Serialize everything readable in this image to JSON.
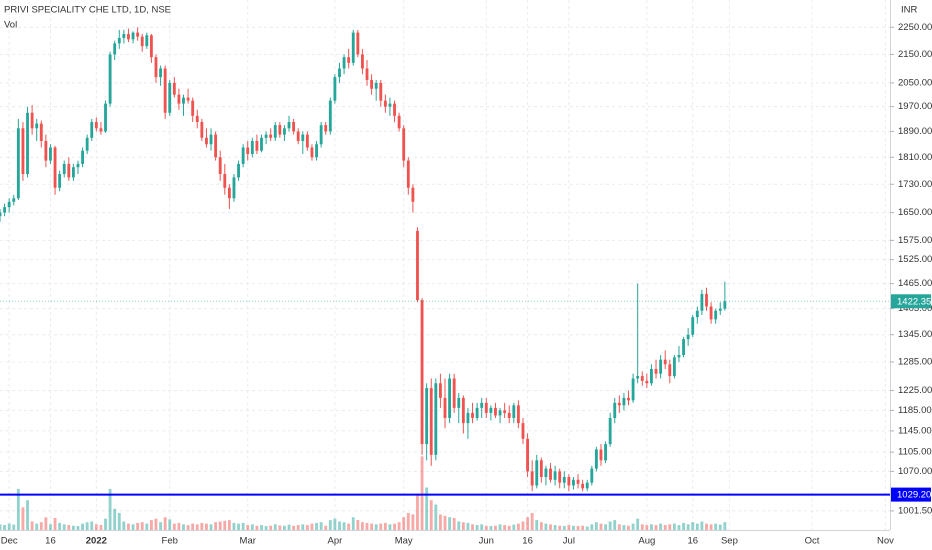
{
  "chart_data": {
    "type": "candlestick",
    "title": "PRIVI SPECIALITY CHE LTD, 1D, NSE",
    "volume_label": "Vol",
    "currency": "INR",
    "log_scale": true,
    "grid": true,
    "up_color": "#26a69a",
    "down_color": "#ef5350",
    "hline_color": "#0000ff",
    "ylim": [
      970,
      2355
    ],
    "yticks": [
      {
        "value": 2250,
        "label": "2250.00"
      },
      {
        "value": 2150,
        "label": "2150.00"
      },
      {
        "value": 2050,
        "label": "2050.00"
      },
      {
        "value": 1970,
        "label": "1970.00"
      },
      {
        "value": 1890,
        "label": "1890.00"
      },
      {
        "value": 1810,
        "label": "1810.00"
      },
      {
        "value": 1730,
        "label": "1730.00"
      },
      {
        "value": 1650,
        "label": "1650.00"
      },
      {
        "value": 1575,
        "label": "1575.00"
      },
      {
        "value": 1525,
        "label": "1525.00"
      },
      {
        "value": 1465,
        "label": "1465.00"
      },
      {
        "value": 1405,
        "label": "1405.00"
      },
      {
        "value": 1345,
        "label": "1345.00"
      },
      {
        "value": 1285,
        "label": "1285.00"
      },
      {
        "value": 1225,
        "label": "1225.00"
      },
      {
        "value": 1185,
        "label": "1185.00"
      },
      {
        "value": 1145,
        "label": "1145.00"
      },
      {
        "value": 1105,
        "label": "1105.00"
      },
      {
        "value": 1070,
        "label": "1070.00"
      },
      {
        "value": 1001.5,
        "label": "1001.50"
      }
    ],
    "xlim": [
      0,
      194
    ],
    "xticks": [
      {
        "value": 2,
        "label": "Dec"
      },
      {
        "value": 11,
        "label": "16"
      },
      {
        "value": 21,
        "label": "2022"
      },
      {
        "value": 37,
        "label": "Feb"
      },
      {
        "value": 54,
        "label": "Mar"
      },
      {
        "value": 73,
        "label": "Apr"
      },
      {
        "value": 88,
        "label": "May"
      },
      {
        "value": 106,
        "label": "Jun"
      },
      {
        "value": 115,
        "label": "16"
      },
      {
        "value": 124,
        "label": "Jul"
      },
      {
        "value": 141,
        "label": "Aug"
      },
      {
        "value": 151,
        "label": "16"
      },
      {
        "value": 159,
        "label": "Sep"
      },
      {
        "value": 177,
        "label": "Oct"
      },
      {
        "value": 193,
        "label": "Nov"
      }
    ],
    "last_price": 1422.35,
    "hline": {
      "value": 1029.2,
      "label": "1029.20"
    },
    "vlim": [
      0,
      600
    ],
    "ohlc": [
      [
        1640,
        1660,
        1625,
        1650
      ],
      [
        1650,
        1675,
        1640,
        1665
      ],
      [
        1665,
        1690,
        1650,
        1680
      ],
      [
        1680,
        1700,
        1670,
        1690
      ],
      [
        1690,
        1930,
        1685,
        1900
      ],
      [
        1900,
        1920,
        1740,
        1760
      ],
      [
        1760,
        1970,
        1750,
        1950
      ],
      [
        1950,
        1975,
        1880,
        1900
      ],
      [
        1900,
        1930,
        1860,
        1915
      ],
      [
        1915,
        1925,
        1840,
        1860
      ],
      [
        1860,
        1880,
        1780,
        1800
      ],
      [
        1800,
        1850,
        1790,
        1840
      ],
      [
        1840,
        1845,
        1700,
        1720
      ],
      [
        1720,
        1770,
        1710,
        1760
      ],
      [
        1760,
        1800,
        1750,
        1790
      ],
      [
        1790,
        1810,
        1740,
        1750
      ],
      [
        1750,
        1790,
        1740,
        1780
      ],
      [
        1780,
        1800,
        1760,
        1790
      ],
      [
        1790,
        1840,
        1780,
        1830
      ],
      [
        1830,
        1880,
        1820,
        1870
      ],
      [
        1870,
        1930,
        1860,
        1920
      ],
      [
        1920,
        1935,
        1890,
        1900
      ],
      [
        1900,
        1920,
        1880,
        1890
      ],
      [
        1890,
        1990,
        1885,
        1980
      ],
      [
        1980,
        2160,
        1970,
        2150
      ],
      [
        2150,
        2200,
        2130,
        2190
      ],
      [
        2190,
        2240,
        2170,
        2210
      ],
      [
        2210,
        2240,
        2190,
        2225
      ],
      [
        2225,
        2245,
        2195,
        2205
      ],
      [
        2205,
        2235,
        2190,
        2230
      ],
      [
        2230,
        2250,
        2200,
        2215
      ],
      [
        2215,
        2225,
        2160,
        2180
      ],
      [
        2180,
        2230,
        2170,
        2220
      ],
      [
        2220,
        2225,
        2120,
        2140
      ],
      [
        2140,
        2150,
        2050,
        2070
      ],
      [
        2070,
        2110,
        2040,
        2100
      ],
      [
        2100,
        2110,
        1930,
        1950
      ],
      [
        1950,
        2060,
        1940,
        2050
      ],
      [
        2050,
        2070,
        2000,
        2010
      ],
      [
        2010,
        2030,
        1960,
        1980
      ],
      [
        1980,
        2010,
        1940,
        2000
      ],
      [
        2000,
        2030,
        1980,
        1990
      ],
      [
        1990,
        2000,
        1920,
        1940
      ],
      [
        1940,
        1960,
        1900,
        1920
      ],
      [
        1920,
        1930,
        1860,
        1870
      ],
      [
        1870,
        1900,
        1840,
        1850
      ],
      [
        1850,
        1900,
        1830,
        1880
      ],
      [
        1880,
        1890,
        1800,
        1810
      ],
      [
        1810,
        1830,
        1740,
        1760
      ],
      [
        1760,
        1790,
        1700,
        1720
      ],
      [
        1720,
        1730,
        1660,
        1690
      ],
      [
        1690,
        1760,
        1680,
        1750
      ],
      [
        1750,
        1800,
        1740,
        1790
      ],
      [
        1790,
        1850,
        1780,
        1840
      ],
      [
        1840,
        1860,
        1800,
        1820
      ],
      [
        1820,
        1870,
        1810,
        1860
      ],
      [
        1860,
        1880,
        1820,
        1830
      ],
      [
        1830,
        1880,
        1825,
        1870
      ],
      [
        1870,
        1890,
        1850,
        1880
      ],
      [
        1880,
        1900,
        1860,
        1870
      ],
      [
        1870,
        1920,
        1860,
        1910
      ],
      [
        1910,
        1920,
        1870,
        1880
      ],
      [
        1880,
        1910,
        1860,
        1900
      ],
      [
        1900,
        1940,
        1890,
        1920
      ],
      [
        1920,
        1930,
        1880,
        1890
      ],
      [
        1890,
        1900,
        1850,
        1860
      ],
      [
        1860,
        1890,
        1820,
        1880
      ],
      [
        1880,
        1890,
        1830,
        1840
      ],
      [
        1840,
        1850,
        1800,
        1810
      ],
      [
        1810,
        1860,
        1800,
        1850
      ],
      [
        1850,
        1920,
        1840,
        1910
      ],
      [
        1910,
        1920,
        1880,
        1890
      ],
      [
        1890,
        2000,
        1880,
        1990
      ],
      [
        1990,
        2080,
        1980,
        2070
      ],
      [
        2070,
        2120,
        2050,
        2100
      ],
      [
        2100,
        2150,
        2080,
        2140
      ],
      [
        2140,
        2170,
        2100,
        2120
      ],
      [
        2120,
        2240,
        2110,
        2230
      ],
      [
        2230,
        2240,
        2140,
        2150
      ],
      [
        2150,
        2170,
        2080,
        2100
      ],
      [
        2100,
        2130,
        2040,
        2060
      ],
      [
        2060,
        2080,
        2010,
        2030
      ],
      [
        2030,
        2060,
        1990,
        2050
      ],
      [
        2050,
        2060,
        1970,
        1990
      ],
      [
        1990,
        2010,
        1950,
        1970
      ],
      [
        1970,
        2000,
        1940,
        1980
      ],
      [
        1980,
        1990,
        1920,
        1940
      ],
      [
        1940,
        1950,
        1890,
        1900
      ],
      [
        1900,
        1910,
        1780,
        1800
      ],
      [
        1800,
        1810,
        1700,
        1720
      ],
      [
        1720,
        1730,
        1650,
        1680
      ],
      [
        1600,
        1610,
        1420,
        1425
      ],
      [
        1425,
        1430,
        1100,
        1120
      ],
      [
        1120,
        1240,
        1090,
        1230
      ],
      [
        1230,
        1250,
        1080,
        1100
      ],
      [
        1100,
        1250,
        1090,
        1240
      ],
      [
        1240,
        1260,
        1190,
        1210
      ],
      [
        1210,
        1250,
        1150,
        1170
      ],
      [
        1170,
        1260,
        1160,
        1250
      ],
      [
        1250,
        1260,
        1180,
        1190
      ],
      [
        1190,
        1220,
        1160,
        1210
      ],
      [
        1210,
        1215,
        1140,
        1160
      ],
      [
        1160,
        1190,
        1130,
        1180
      ],
      [
        1180,
        1200,
        1160,
        1170
      ],
      [
        1170,
        1200,
        1165,
        1190
      ],
      [
        1190,
        1210,
        1170,
        1200
      ],
      [
        1200,
        1210,
        1170,
        1180
      ],
      [
        1180,
        1195,
        1165,
        1190
      ],
      [
        1190,
        1200,
        1170,
        1175
      ],
      [
        1175,
        1190,
        1160,
        1185
      ],
      [
        1185,
        1200,
        1170,
        1180
      ],
      [
        1180,
        1195,
        1160,
        1170
      ],
      [
        1170,
        1200,
        1160,
        1195
      ],
      [
        1195,
        1205,
        1150,
        1160
      ],
      [
        1160,
        1170,
        1120,
        1130
      ],
      [
        1130,
        1140,
        1060,
        1070
      ],
      [
        1070,
        1090,
        1035,
        1045
      ],
      [
        1045,
        1100,
        1040,
        1090
      ],
      [
        1090,
        1095,
        1050,
        1060
      ],
      [
        1060,
        1080,
        1045,
        1075
      ],
      [
        1075,
        1085,
        1050,
        1055
      ],
      [
        1055,
        1080,
        1045,
        1070
      ],
      [
        1070,
        1075,
        1040,
        1050
      ],
      [
        1050,
        1070,
        1040,
        1060
      ],
      [
        1060,
        1065,
        1035,
        1045
      ],
      [
        1045,
        1060,
        1038,
        1055
      ],
      [
        1055,
        1065,
        1040,
        1048
      ],
      [
        1048,
        1055,
        1035,
        1040
      ],
      [
        1040,
        1055,
        1035,
        1050
      ],
      [
        1050,
        1080,
        1045,
        1075
      ],
      [
        1075,
        1115,
        1070,
        1110
      ],
      [
        1110,
        1120,
        1080,
        1090
      ],
      [
        1090,
        1125,
        1085,
        1120
      ],
      [
        1120,
        1180,
        1115,
        1170
      ],
      [
        1170,
        1210,
        1160,
        1200
      ],
      [
        1200,
        1215,
        1180,
        1195
      ],
      [
        1195,
        1220,
        1185,
        1210
      ],
      [
        1210,
        1225,
        1195,
        1205
      ],
      [
        1205,
        1260,
        1200,
        1250
      ],
      [
        1250,
        1465,
        1240,
        1255
      ],
      [
        1255,
        1265,
        1235,
        1245
      ],
      [
        1245,
        1260,
        1230,
        1240
      ],
      [
        1240,
        1280,
        1235,
        1270
      ],
      [
        1270,
        1290,
        1250,
        1260
      ],
      [
        1260,
        1300,
        1250,
        1290
      ],
      [
        1290,
        1310,
        1270,
        1280
      ],
      [
        1280,
        1290,
        1240,
        1255
      ],
      [
        1255,
        1300,
        1250,
        1295
      ],
      [
        1295,
        1320,
        1285,
        1300
      ],
      [
        1300,
        1340,
        1295,
        1335
      ],
      [
        1335,
        1360,
        1320,
        1345
      ],
      [
        1345,
        1390,
        1340,
        1385
      ],
      [
        1385,
        1410,
        1370,
        1400
      ],
      [
        1400,
        1450,
        1390,
        1440
      ],
      [
        1440,
        1455,
        1400,
        1410
      ],
      [
        1410,
        1420,
        1370,
        1380
      ],
      [
        1380,
        1405,
        1370,
        1400
      ],
      [
        1400,
        1420,
        1390,
        1405
      ],
      [
        1405,
        1470,
        1400,
        1422.35
      ]
    ],
    "volume": [
      40,
      35,
      45,
      38,
      290,
      160,
      210,
      60,
      45,
      55,
      90,
      40,
      85,
      50,
      40,
      35,
      30,
      28,
      45,
      55,
      60,
      40,
      35,
      80,
      290,
      150,
      120,
      60,
      45,
      40,
      50,
      55,
      45,
      70,
      80,
      55,
      90,
      75,
      45,
      50,
      40,
      35,
      45,
      40,
      50,
      45,
      40,
      55,
      60,
      65,
      70,
      50,
      45,
      50,
      35,
      40,
      30,
      35,
      28,
      30,
      40,
      32,
      30,
      38,
      30,
      35,
      40,
      35,
      45,
      50,
      55,
      30,
      70,
      80,
      60,
      55,
      45,
      90,
      70,
      55,
      50,
      45,
      40,
      45,
      50,
      40,
      45,
      55,
      90,
      120,
      110,
      250,
      520,
      300,
      210,
      180,
      110,
      100,
      90,
      85,
      60,
      55,
      50,
      40,
      35,
      40,
      30,
      28,
      30,
      40,
      35,
      30,
      38,
      45,
      60,
      90,
      120,
      70,
      55,
      45,
      40,
      35,
      30,
      28,
      35,
      30,
      28,
      30,
      25,
      40,
      55,
      45,
      40,
      60,
      70,
      40,
      35,
      30,
      45,
      80,
      40,
      35,
      40,
      35,
      45,
      35,
      40,
      45,
      35,
      50,
      40,
      55,
      45,
      60,
      45,
      40,
      45,
      38,
      55
    ]
  }
}
